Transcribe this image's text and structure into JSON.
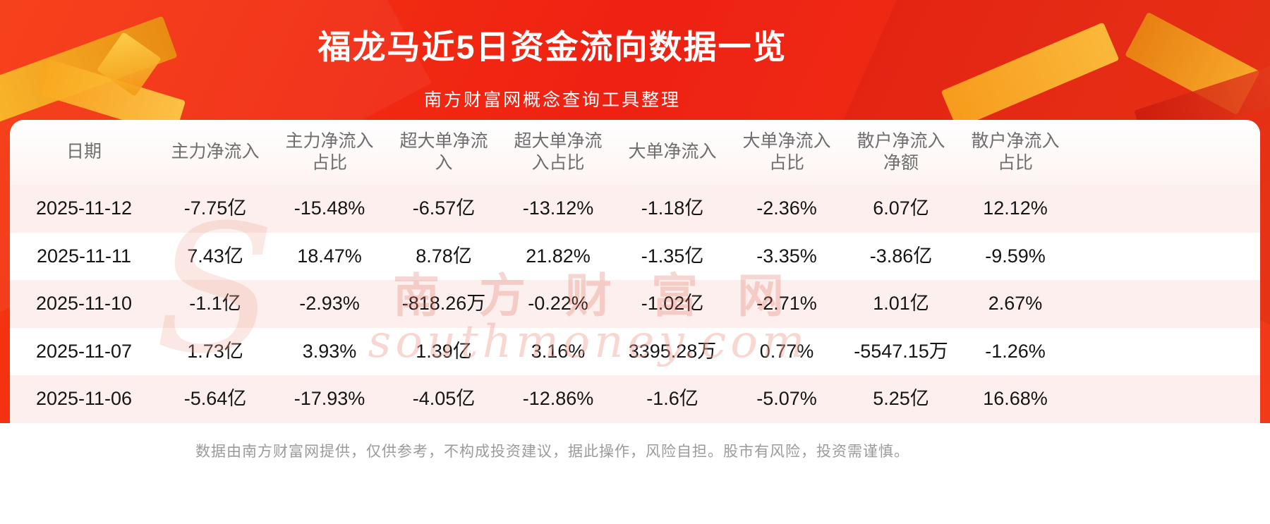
{
  "header": {
    "title": "福龙马近5日资金流向数据一览",
    "subtitle": "南方财富网概念查询工具整理"
  },
  "watermark": {
    "logo_initial": "S",
    "cn": "南方财富网",
    "en": "southmoney.com"
  },
  "footer": {
    "disclaimer": "数据由南方财富网提供，仅供参考，不构成投资建议，据此操作，风险自担。股市有风险，投资需谨慎。"
  },
  "colors": {
    "banner_red": "#ee2113",
    "ribbon_gold": "#f9a81e",
    "card_white": "#ffffff",
    "row_stripe_pink": "#fdefed",
    "header_text": "#6e6e6e",
    "cell_text": "#151515",
    "title_text": "#ffffff",
    "footer_text": "#9b9b9b",
    "watermark_pink": "#e07a6a"
  },
  "chart_data": {
    "type": "table",
    "title": "福龙马近5日资金流向数据一览",
    "columns": [
      "日期",
      "主力净流入",
      "主力净流入\n占比",
      "超大单净流\n入",
      "超大单净流\n入占比",
      "大单净流入",
      "大单净流入\n占比",
      "散户净流入\n净额",
      "散户净流入\n占比"
    ],
    "rows": [
      [
        "2025-11-12",
        "-7.75亿",
        "-15.48%",
        "-6.57亿",
        "-13.12%",
        "-1.18亿",
        "-2.36%",
        "6.07亿",
        "12.12%"
      ],
      [
        "2025-11-11",
        "7.43亿",
        "18.47%",
        "8.78亿",
        "21.82%",
        "-1.35亿",
        "-3.35%",
        "-3.86亿",
        "-9.59%"
      ],
      [
        "2025-11-10",
        "-1.1亿",
        "-2.93%",
        "-818.26万",
        "-0.22%",
        "-1.02亿",
        "-2.71%",
        "1.01亿",
        "2.67%"
      ],
      [
        "2025-11-07",
        "1.73亿",
        "3.93%",
        "1.39亿",
        "3.16%",
        "3395.28万",
        "0.77%",
        "-5547.15万",
        "-1.26%"
      ],
      [
        "2025-11-06",
        "-5.64亿",
        "-17.93%",
        "-4.05亿",
        "-12.86%",
        "-1.6亿",
        "-5.07%",
        "5.25亿",
        "16.68%"
      ]
    ]
  }
}
